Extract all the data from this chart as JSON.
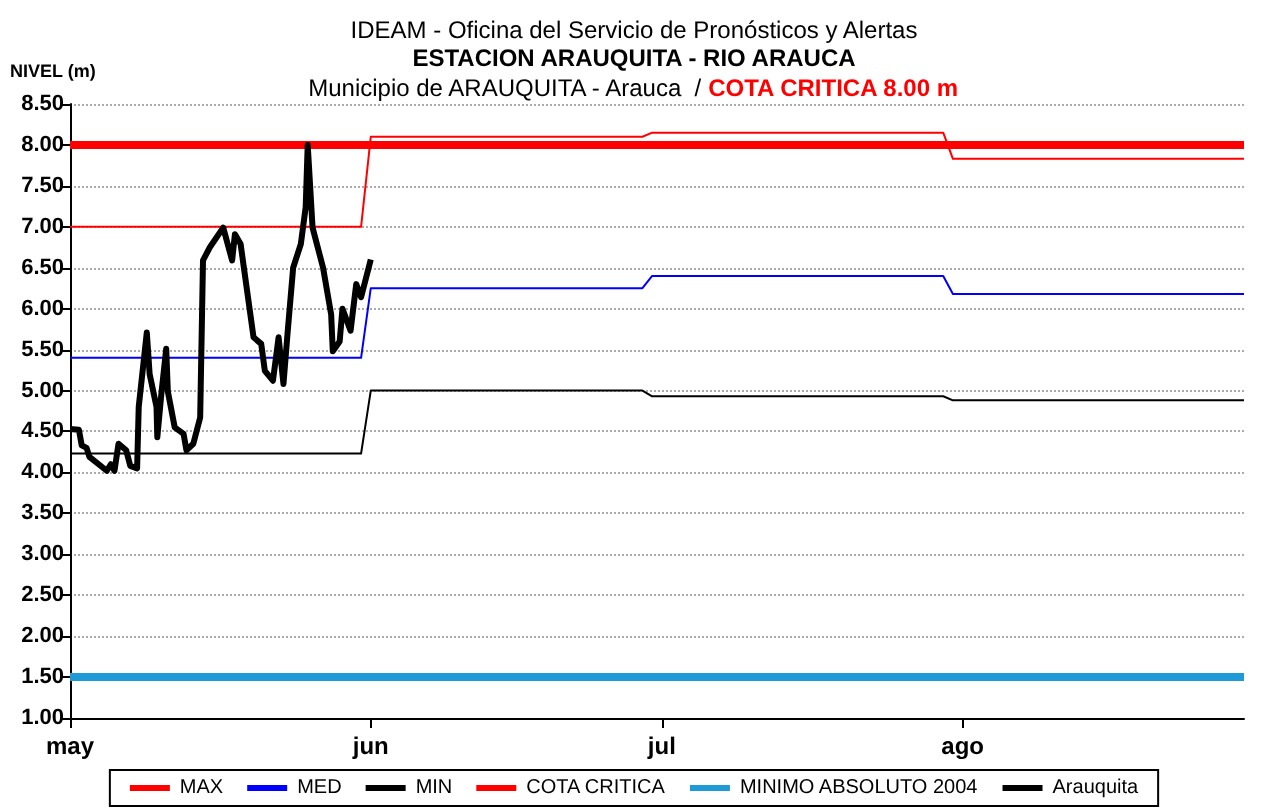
{
  "chart_data": {
    "type": "line",
    "title": "IDEAM - Oficina del Servicio de Pronósticos y Alertas",
    "subtitle": "ESTACION ARAUQUITA - RIO ARAUCA",
    "annotations": [
      "Municipio de ARAUQUITA - Arauca  /",
      "COTA CRITICA 8.00 m"
    ],
    "ylabel": "NIVEL (m)",
    "xlim": [
      "--05-01",
      "--08-30"
    ],
    "xticks": [
      {
        "value": "--05-01",
        "label": "may"
      },
      {
        "value": "--06-01",
        "label": "jun"
      },
      {
        "value": "--07-01",
        "label": "jul"
      },
      {
        "value": "--08-01",
        "label": "ago"
      }
    ],
    "ylim": [
      1,
      8.5
    ],
    "yticks": [
      {
        "value": 1,
        "label": "1.00"
      },
      {
        "value": 1.5,
        "label": "1.50"
      },
      {
        "value": 2,
        "label": "2.00"
      },
      {
        "value": 2.5,
        "label": "2.50"
      },
      {
        "value": 3,
        "label": "3.00"
      },
      {
        "value": 3.5,
        "label": "3.50"
      },
      {
        "value": 4,
        "label": "4.00"
      },
      {
        "value": 4.5,
        "label": "4.50"
      },
      {
        "value": 5,
        "label": "5.00"
      },
      {
        "value": 5.5,
        "label": "5.50"
      },
      {
        "value": 6,
        "label": "6.00"
      },
      {
        "value": 6.5,
        "label": "6.50"
      },
      {
        "value": 7,
        "label": "7.00"
      },
      {
        "value": 7.5,
        "label": "7.50"
      },
      {
        "value": 8,
        "label": "8.00"
      },
      {
        "value": 8.5,
        "label": "8.50"
      }
    ],
    "grid": "y",
    "legend": "bottom",
    "marker": "none",
    "series": [
      {
        "name": "MAX",
        "color": "#ff0000",
        "x": [
          "--05-01",
          "--05-31",
          "--06-01",
          "--06-29",
          "--06-30",
          "--07-30",
          "--07-31",
          "--08-30"
        ],
        "values": [
          7.0,
          7.0,
          8.1,
          8.1,
          8.15,
          8.15,
          7.83,
          7.83
        ]
      },
      {
        "name": "MED",
        "color": "#0000ff",
        "x": [
          "--05-01",
          "--05-31",
          "--06-01",
          "--06-29",
          "--06-30",
          "--07-30",
          "--07-31",
          "--08-30"
        ],
        "values": [
          5.4,
          5.4,
          6.25,
          6.25,
          6.4,
          6.4,
          6.18,
          6.18
        ]
      },
      {
        "name": "MIN",
        "color": "#000000",
        "x": [
          "--05-01",
          "--05-31",
          "--06-01",
          "--06-29",
          "--06-30",
          "--07-30",
          "--07-31",
          "--08-30"
        ],
        "values": [
          4.23,
          4.23,
          5.0,
          5.0,
          4.93,
          4.93,
          4.88,
          4.88
        ]
      },
      {
        "name": "COTA CRITICA",
        "color": "#ff0000",
        "x": [
          "--05-01",
          "--08-30"
        ],
        "values": [
          8.0,
          8.0
        ]
      },
      {
        "name": "MINIMO ABSOLUTO 2004",
        "color": "#1e9bd7",
        "x": [
          "--05-01",
          "--08-30"
        ],
        "values": [
          1.5,
          1.5
        ]
      },
      {
        "name": "Arauquita",
        "color": "#000000",
        "x": [
          "--05-01T00:00",
          "--05-01T22:00",
          "--05-02T05:00",
          "--05-02T17:00",
          "--05-03T00:00",
          "--05-04T19:00",
          "--05-05T05:00",
          "--05-05T14:00",
          "--05-06T00:00",
          "--05-06T19:00",
          "--05-07T05:00",
          "--05-07T22:00",
          "--05-08T02:00",
          "--05-08T22:00",
          "--05-09T05:00",
          "--05-09T22:00",
          "--05-10T00:00",
          "--05-10T10:00",
          "--05-10T22:00",
          "--05-11T02:00",
          "--05-11T19:00",
          "--05-12T17:00",
          "--05-13T00:00",
          "--05-13T17:00",
          "--05-14T10:00",
          "--05-14T17:00",
          "--05-15T10:00",
          "--05-16T19:00",
          "--05-17T17:00",
          "--05-18T00:00",
          "--05-18T14:00",
          "--05-19T22:00",
          "--05-20T17:00",
          "--05-21T02:00",
          "--05-21T22:00",
          "--05-22T12:00",
          "--05-23T00:00",
          "--05-23T10:00",
          "--05-24T00:00",
          "--05-24T19:00",
          "--05-25T07:00",
          "--05-25T12:00",
          "--05-26T00:00",
          "--05-27T02:00",
          "--05-27T22:00",
          "--05-28T02:00",
          "--05-28T19:00",
          "--05-29T02:00",
          "--05-29T22:00",
          "--05-30T12:00",
          "--05-31T00:00",
          "--06-01T00:00"
        ],
        "values": [
          4.53,
          4.52,
          4.33,
          4.3,
          4.19,
          4.02,
          4.1,
          4.02,
          4.35,
          4.27,
          4.08,
          4.05,
          4.8,
          5.71,
          5.2,
          4.8,
          4.43,
          4.96,
          5.51,
          4.99,
          4.55,
          4.47,
          4.27,
          4.35,
          4.67,
          6.59,
          6.75,
          6.99,
          6.59,
          6.91,
          6.79,
          5.65,
          5.57,
          5.24,
          5.12,
          5.65,
          5.08,
          5.69,
          6.5,
          6.79,
          7.24,
          8.0,
          6.99,
          6.5,
          5.93,
          5.48,
          5.6,
          6.0,
          5.73,
          6.3,
          6.14,
          6.6
        ]
      }
    ]
  }
}
